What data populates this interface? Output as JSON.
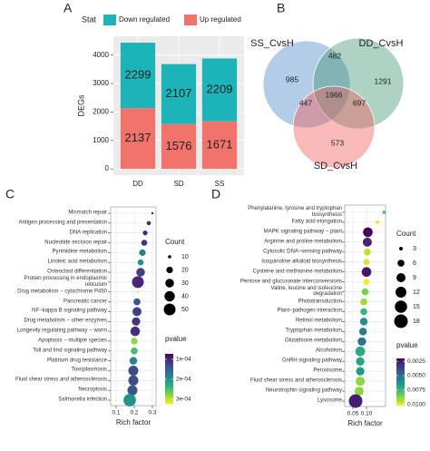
{
  "chart_data": [
    {
      "type": "bar",
      "panel": "A",
      "stacked": true,
      "legend_title": "Stat",
      "ylabel": "DEGs",
      "categories": [
        "DD",
        "SD",
        "SS"
      ],
      "series": [
        {
          "name": "Down regulated",
          "color": "#1cb4b8",
          "values": [
            2299,
            2107,
            2209
          ]
        },
        {
          "name": "Up regulated",
          "color": "#f2736c",
          "values": [
            2137,
            1576,
            1671
          ]
        }
      ],
      "ylim": [
        -220,
        4660
      ],
      "yticks": [
        0,
        1000,
        2000,
        3000,
        4000
      ],
      "grid": true
    },
    {
      "type": "venn",
      "panel": "B",
      "sets": [
        {
          "name": "SS_CvsH",
          "color": "#4a86c5"
        },
        {
          "name": "DD_CvsH",
          "color": "#3f9472"
        },
        {
          "name": "SD_CvsH",
          "color": "#ef5a55"
        }
      ],
      "regions": [
        {
          "sets": [
            0
          ],
          "value": 985
        },
        {
          "sets": [
            1
          ],
          "value": 1291
        },
        {
          "sets": [
            0,
            1
          ],
          "value": 482
        },
        {
          "sets": [
            0,
            1,
            2
          ],
          "value": 1966
        },
        {
          "sets": [
            0,
            2
          ],
          "value": 447
        },
        {
          "sets": [
            1,
            2
          ],
          "value": 697
        },
        {
          "sets": [
            2
          ],
          "value": 573
        }
      ]
    },
    {
      "type": "dot",
      "panel": "C",
      "xlabel": "Rich factor",
      "colormap": "viridis",
      "grid": true,
      "categories": [
        "Mismatch repair",
        "Antigen processing and presentation",
        "DNA replication",
        "Nucleotide excision repair",
        "Pyrimidine metabolism",
        "Linoleic acid metabolism",
        "Osteoclast differentiation",
        "Protein processing in endoplasmic\nreticulum",
        "Drug metabolism − cytochrome P450",
        "Pancreatic cancer",
        "NF−kappa B signaling pathway",
        "Drug metabolism − other enzymes",
        "Longevity regulating pathway − worm",
        "Apoptosis − multiple species",
        "Toll and Imd signaling pathway",
        "Platinum drug resistance",
        "Toxoplasmosis",
        "Fluid shear stress and atherosclerosis",
        "Necroptosis",
        "Salmonella infection"
      ],
      "values": [
        0.3,
        0.28,
        0.26,
        0.255,
        0.245,
        0.235,
        0.235,
        0.22,
        0.22,
        0.215,
        0.215,
        0.21,
        0.205,
        0.2,
        0.2,
        0.195,
        0.195,
        0.195,
        0.19,
        0.175
      ],
      "sizes": [
        8,
        12,
        14,
        18,
        20,
        18,
        30,
        50,
        8,
        22,
        32,
        28,
        35,
        20,
        22,
        25,
        38,
        38,
        38,
        55
      ],
      "pvalues": [
        7.5e-05,
        0.0001,
        0.00011,
        0.00011,
        0.00018,
        0.0002,
        0.00012,
        0.0001,
        0.00032,
        0.00014,
        0.00012,
        0.00011,
        0.000105,
        0.00028,
        0.00025,
        0.00019,
        0.00013,
        0.00013,
        0.00014,
        0.0002
      ],
      "xlim": [
        0.07,
        0.32
      ],
      "xticks": [
        0.1,
        0.2,
        0.3
      ],
      "size_title": "Count",
      "size_ticks": [
        10,
        20,
        30,
        40,
        50
      ],
      "color_title": "pvalue",
      "color_lim": [
        7.3e-05,
        0.000323
      ],
      "color_ticks": [
        {
          "value": 0.0001,
          "label": "1e-04"
        },
        {
          "value": 0.0002,
          "label": "2e-04"
        },
        {
          "value": 0.0003,
          "label": "3e-04"
        }
      ]
    },
    {
      "type": "dot",
      "panel": "D",
      "xlabel": "Rich factor",
      "colormap": "viridis",
      "grid": true,
      "categories": [
        "Phenylalanine, tyrosine and tryptophan\nbiosynthesis",
        "Fatty acid elongation",
        "MAPK signaling pathway − plant",
        "Arginine and proline metabolism",
        "Cytosolic DNA−sensing pathway",
        "Isoquinoline alkaloid biosynthesis",
        "Cysteine and methionine metabolism",
        "Pentose and glucuronate interconversions",
        "Valine, leucine and isoleucine\ndegradation",
        "Phototransduction",
        "Plant−pathogen interaction",
        "Retinol metabolism",
        "Tryptophan metabolism",
        "Glutathione metabolism",
        "Alcoholism",
        "GnRH signaling pathway",
        "Peroxisome",
        "Fluid shear stress and atherosclerosis",
        "Neurotrophin signaling pathway",
        "Lysosome"
      ],
      "values": [
        0.165,
        0.14,
        0.105,
        0.103,
        0.103,
        0.1,
        0.1,
        0.1,
        0.095,
        0.09,
        0.09,
        0.09,
        0.087,
        0.083,
        0.077,
        0.077,
        0.077,
        0.077,
        0.073,
        0.06
      ],
      "sizes": [
        3,
        3,
        10,
        9,
        6,
        5,
        10,
        5,
        6,
        6,
        6,
        7,
        7,
        8,
        10,
        8,
        8,
        9,
        9,
        18
      ],
      "pvalues": [
        0.008,
        0.0101,
        0.0021,
        0.0028,
        0.0095,
        0.0098,
        0.0025,
        0.0102,
        0.0085,
        0.009,
        0.0075,
        0.0062,
        0.0055,
        0.005,
        0.007,
        0.0068,
        0.0065,
        0.0088,
        0.0088,
        0.0027
      ],
      "xlim": [
        0.02,
        0.17
      ],
      "xticks": [
        0.05,
        {
          "value": 0.1,
          "label": "0.10"
        }
      ],
      "size_title": "Count",
      "size_ticks": [
        3,
        6,
        9,
        12,
        15,
        18
      ],
      "color_title": "pvalue",
      "color_lim": [
        0.002,
        0.0102
      ],
      "color_ticks": [
        {
          "value": 0.0025,
          "label": "0.0025"
        },
        {
          "value": 0.005,
          "label": "0.0050"
        },
        {
          "value": 0.0075,
          "label": "0.0075"
        },
        {
          "value": 0.01,
          "label": "0.0100"
        }
      ]
    }
  ]
}
